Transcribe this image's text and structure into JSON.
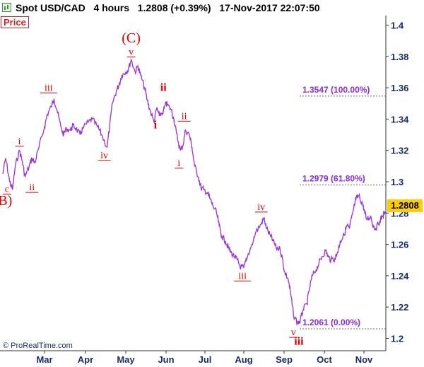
{
  "header": {
    "title": "Spot USD/CAD   4 hours   1.2808 (+0.39%)   17-Nov-2017 22:07:50",
    "price_tag": "Price"
  },
  "credit": "© ProRealTime.com",
  "colors": {
    "series": "#9b30d9",
    "wave_labels": "#dd0000",
    "fib": "#8a2be2",
    "axis_text": "#1a2a66",
    "last_price_bg": "#ffcc00"
  },
  "chart_data": {
    "type": "line",
    "title": "Spot USD/CAD",
    "ylim": [
      1.195,
      1.41
    ],
    "y_ticks": [
      "1.4",
      "1.38",
      "1.36",
      "1.34",
      "1.32",
      "1.3",
      "1.28",
      "1.26",
      "1.24",
      "1.22",
      "1.2"
    ],
    "x_ticks": [
      "Mar",
      "Apr",
      "May",
      "Jun",
      "Jul",
      "Aug",
      "Sep",
      "Oct",
      "Nov"
    ],
    "last_price": "1.2808",
    "series": [
      {
        "points": [
          [
            "Feb-01",
            1.305
          ],
          [
            "Feb-03",
            1.315
          ],
          [
            "Feb-06",
            1.3
          ],
          [
            "Feb-08",
            1.295
          ],
          [
            "Feb-10",
            1.31
          ],
          [
            "Feb-13",
            1.32
          ],
          [
            "Feb-15",
            1.313
          ],
          [
            "Feb-17",
            1.303
          ],
          [
            "Feb-20",
            1.31
          ],
          [
            "Feb-22",
            1.315
          ],
          [
            "Feb-24",
            1.312
          ],
          [
            "Feb-27",
            1.322
          ],
          [
            "Mar-01",
            1.335
          ],
          [
            "Mar-03",
            1.343
          ],
          [
            "Mar-06",
            1.348
          ],
          [
            "Mar-08",
            1.353
          ],
          [
            "Mar-10",
            1.346
          ],
          [
            "Mar-13",
            1.335
          ],
          [
            "Mar-15",
            1.33
          ],
          [
            "Mar-17",
            1.334
          ],
          [
            "Mar-20",
            1.333
          ],
          [
            "Mar-22",
            1.336
          ],
          [
            "Mar-24",
            1.334
          ],
          [
            "Mar-27",
            1.33
          ],
          [
            "Mar-29",
            1.334
          ],
          [
            "Apr-03",
            1.338
          ],
          [
            "Apr-06",
            1.34
          ],
          [
            "Apr-10",
            1.335
          ],
          [
            "Apr-13",
            1.33
          ],
          [
            "Apr-17",
            1.322
          ],
          [
            "Apr-19",
            1.335
          ],
          [
            "Apr-21",
            1.35
          ],
          [
            "Apr-24",
            1.358
          ],
          [
            "Apr-26",
            1.362
          ],
          [
            "Apr-28",
            1.368
          ],
          [
            "May-01",
            1.37
          ],
          [
            "May-03",
            1.372
          ],
          [
            "May-05",
            1.378
          ],
          [
            "May-08",
            1.37
          ],
          [
            "May-10",
            1.374
          ],
          [
            "May-12",
            1.368
          ],
          [
            "May-15",
            1.36
          ],
          [
            "May-17",
            1.352
          ],
          [
            "May-19",
            1.346
          ],
          [
            "May-22",
            1.338
          ],
          [
            "May-24",
            1.347
          ],
          [
            "May-26",
            1.342
          ],
          [
            "May-29",
            1.345
          ],
          [
            "May-31",
            1.35
          ],
          [
            "Jun-02",
            1.349
          ],
          [
            "Jun-05",
            1.346
          ],
          [
            "Jun-07",
            1.34
          ],
          [
            "Jun-09",
            1.331
          ],
          [
            "Jun-12",
            1.32
          ],
          [
            "Jun-14",
            1.323
          ],
          [
            "Jun-16",
            1.333
          ],
          [
            "Jun-19",
            1.33
          ],
          [
            "Jun-21",
            1.322
          ],
          [
            "Jun-23",
            1.31
          ],
          [
            "Jun-26",
            1.303
          ],
          [
            "Jun-28",
            1.296
          ],
          [
            "Jun-30",
            1.295
          ],
          [
            "Jul-03",
            1.293
          ],
          [
            "Jul-05",
            1.289
          ],
          [
            "Jul-07",
            1.285
          ],
          [
            "Jul-10",
            1.28
          ],
          [
            "Jul-12",
            1.272
          ],
          [
            "Jul-14",
            1.265
          ],
          [
            "Jul-17",
            1.262
          ],
          [
            "Jul-19",
            1.258
          ],
          [
            "Jul-21",
            1.255
          ],
          [
            "Jul-24",
            1.252
          ],
          [
            "Jul-26",
            1.25
          ],
          [
            "Jul-28",
            1.246
          ],
          [
            "Aug-01",
            1.245
          ],
          [
            "Aug-03",
            1.25
          ],
          [
            "Aug-07",
            1.26
          ],
          [
            "Aug-10",
            1.268
          ],
          [
            "Aug-14",
            1.273
          ],
          [
            "Aug-16",
            1.277
          ],
          [
            "Aug-18",
            1.27
          ],
          [
            "Aug-21",
            1.265
          ],
          [
            "Aug-23",
            1.262
          ],
          [
            "Aug-25",
            1.258
          ],
          [
            "Aug-28",
            1.257
          ],
          [
            "Aug-30",
            1.25
          ],
          [
            "Sep-01",
            1.243
          ],
          [
            "Sep-04",
            1.238
          ],
          [
            "Sep-06",
            1.228
          ],
          [
            "Sep-08",
            1.215
          ],
          [
            "Sep-11",
            1.21
          ],
          [
            "Sep-13",
            1.211
          ],
          [
            "Sep-15",
            1.218
          ],
          [
            "Sep-18",
            1.222
          ],
          [
            "Sep-20",
            1.232
          ],
          [
            "Sep-22",
            1.24
          ],
          [
            "Sep-25",
            1.244
          ],
          [
            "Sep-27",
            1.248
          ],
          [
            "Sep-29",
            1.252
          ],
          [
            "Oct-02",
            1.256
          ],
          [
            "Oct-04",
            1.252
          ],
          [
            "Oct-06",
            1.25
          ],
          [
            "Oct-09",
            1.251
          ],
          [
            "Oct-11",
            1.255
          ],
          [
            "Oct-13",
            1.262
          ],
          [
            "Oct-16",
            1.266
          ],
          [
            "Oct-18",
            1.272
          ],
          [
            "Oct-20",
            1.27
          ],
          [
            "Oct-23",
            1.282
          ],
          [
            "Oct-25",
            1.289
          ],
          [
            "Oct-27",
            1.291
          ],
          [
            "Oct-30",
            1.286
          ],
          [
            "Nov-01",
            1.282
          ],
          [
            "Nov-03",
            1.276
          ],
          [
            "Nov-06",
            1.278
          ],
          [
            "Nov-08",
            1.272
          ],
          [
            "Nov-10",
            1.27
          ],
          [
            "Nov-13",
            1.275
          ],
          [
            "Nov-15",
            1.278
          ],
          [
            "Nov-17",
            1.2808
          ]
        ]
      }
    ],
    "fib_levels": [
      {
        "label": "1.3547 (100.00%)",
        "value": 1.3547
      },
      {
        "label": "1.2979 (61.80%)",
        "value": 1.2979
      },
      {
        "label": "1.2061 (0.00%)",
        "value": 1.2061
      }
    ],
    "wave_labels": [
      {
        "text": "(B)",
        "date": "Feb-01",
        "value": 1.285,
        "style": "big"
      },
      {
        "text": "c",
        "date": "Feb-04",
        "value": 1.2935,
        "style": "small"
      },
      {
        "text": "i",
        "date": "Feb-13",
        "value": 1.324,
        "style": "small"
      },
      {
        "text": "ii",
        "date": "Feb-22",
        "value": 1.2945,
        "style": "small"
      },
      {
        "text": "iii",
        "date": "Mar-04",
        "value": 1.358,
        "style": "small"
      },
      {
        "text": "iv",
        "date": "Apr-15",
        "value": 1.315,
        "style": "small"
      },
      {
        "text": "(C)",
        "date": "May-05",
        "value": 1.389,
        "style": "big"
      },
      {
        "text": "v",
        "date": "May-05",
        "value": 1.381,
        "style": "small"
      },
      {
        "text": "ii",
        "date": "May-29",
        "value": 1.358,
        "style": "bold"
      },
      {
        "text": "i",
        "date": "May-23",
        "value": 1.334,
        "style": "bold"
      },
      {
        "text": "ii",
        "date": "Jun-15",
        "value": 1.34,
        "style": "small"
      },
      {
        "text": "i",
        "date": "Jun-11",
        "value": 1.31,
        "style": "small"
      },
      {
        "text": "iv",
        "date": "Aug-14",
        "value": 1.282,
        "style": "small"
      },
      {
        "text": "iii",
        "date": "Jul-30",
        "value": 1.238,
        "style": "small"
      },
      {
        "text": "v",
        "date": "Sep-08",
        "value": 1.202,
        "style": "small"
      },
      {
        "text": "iii",
        "date": "Sep-12",
        "value": 1.196,
        "style": "bold"
      }
    ]
  }
}
